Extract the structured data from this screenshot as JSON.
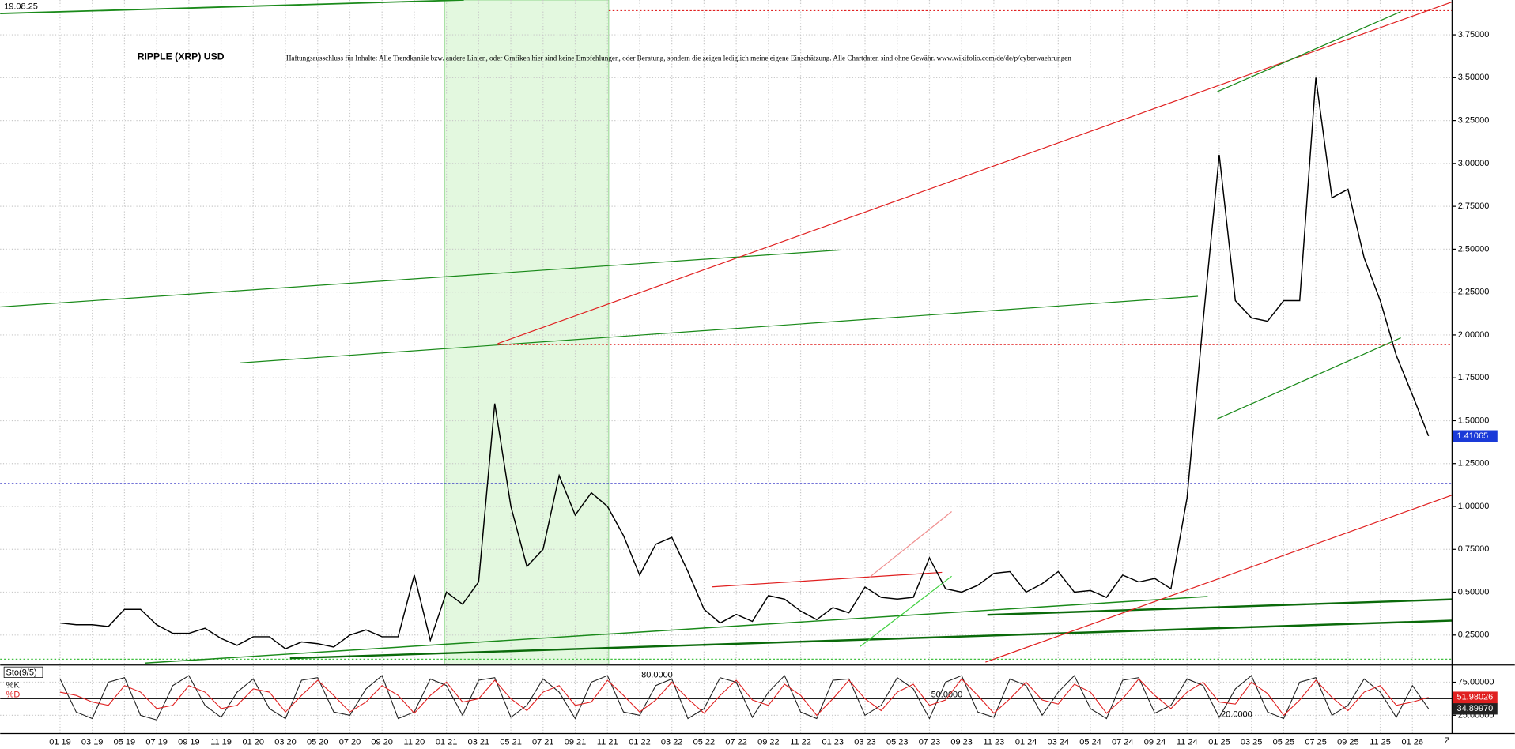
{
  "date_label": "19.08.25",
  "chart_data": [
    {
      "type": "line",
      "title": "RIPPLE (XRP) USD",
      "subtitle": "Haftungsausschluss für Inhalte: Alle Trendkanäle bzw. andere Linien, oder Grafiken hier sind keine Empfehlungen, oder Beratung, sondern die zeigen lediglich meine eigene Einschätzung. Alle Chartdaten sind ohne Gewähr.  www.wikifolio.com/de/de/p/cyberwaehrungen",
      "categories": [
        "01 19",
        null,
        "03 19",
        null,
        "05 19",
        null,
        "07 19",
        null,
        "09 19",
        null,
        "11 19",
        null,
        "01 20",
        null,
        "03 20",
        null,
        "05 20",
        null,
        "07 20",
        null,
        "09 20",
        null,
        "11 20",
        null,
        "01 21",
        null,
        "03 21",
        null,
        "05 21",
        null,
        "07 21",
        null,
        "09 21",
        null,
        "11 21",
        null,
        "01 22",
        null,
        "03 22",
        null,
        "05 22",
        null,
        "07 22",
        null,
        "09 22",
        null,
        "11 22",
        null,
        "01 23",
        null,
        "03 23",
        null,
        "05 23",
        null,
        "07 23",
        null,
        "09 23",
        null,
        "11 23",
        null,
        "01 24",
        null,
        "03 24",
        null,
        "05 24",
        null,
        "07 24",
        null,
        "09 24",
        null,
        "11 24",
        null,
        "01 25",
        null,
        "03 25",
        null,
        "05 25",
        null,
        "07 25",
        null,
        "09 25",
        null,
        "11 25",
        null,
        "01 26",
        null
      ],
      "x_end_label": "Z",
      "series": [
        {
          "name": "XRP",
          "color": "#000000",
          "values": [
            0.32,
            0.31,
            0.31,
            0.3,
            0.4,
            0.4,
            0.31,
            0.26,
            0.26,
            0.29,
            0.23,
            0.19,
            0.24,
            0.24,
            0.17,
            0.21,
            0.2,
            0.18,
            0.25,
            0.28,
            0.24,
            0.24,
            0.6,
            0.22,
            0.5,
            0.43,
            0.56,
            1.6,
            1.0,
            0.65,
            0.75,
            1.18,
            0.95,
            1.08,
            1.0,
            0.83,
            0.6,
            0.78,
            0.82,
            0.62,
            0.4,
            0.32,
            0.37,
            0.33,
            0.48,
            0.46,
            0.39,
            0.34,
            0.41,
            0.38,
            0.53,
            0.47,
            0.46,
            0.47,
            0.7,
            0.52,
            0.5,
            0.54,
            0.61,
            0.62,
            0.5,
            0.55,
            0.62,
            0.5,
            0.51,
            0.47,
            0.6,
            0.56,
            0.58,
            0.52,
            1.05,
            2.08,
            3.05,
            2.2,
            2.1,
            2.08,
            2.2,
            2.2,
            3.5,
            2.8,
            2.85,
            2.45,
            2.2,
            1.88,
            1.65,
            1.41065
          ]
        }
      ],
      "ylim": [
        0.081,
        3.953
      ],
      "yticks": [
        {
          "value": 0.25,
          "label": "0.25000"
        },
        {
          "value": 0.5,
          "label": "0.50000"
        },
        {
          "value": 0.75,
          "label": "0.75000"
        },
        {
          "value": 1,
          "label": "1.00000"
        },
        {
          "value": 1.25,
          "label": "1.25000"
        },
        {
          "value": 1.5,
          "label": "1.50000"
        },
        {
          "value": 1.75,
          "label": "1.75000"
        },
        {
          "value": 2,
          "label": "2.00000"
        },
        {
          "value": 2.25,
          "label": "2.25000"
        },
        {
          "value": 2.5,
          "label": "2.50000"
        },
        {
          "value": 2.75,
          "label": "2.75000"
        },
        {
          "value": 3,
          "label": "3.00000"
        },
        {
          "value": 3.25,
          "label": "3.25000"
        },
        {
          "value": 3.5,
          "label": "3.50000"
        },
        {
          "value": 3.75,
          "label": "3.75000"
        }
      ],
      "grid": true
    },
    {
      "type": "line",
      "title": "Sto(9/5)",
      "series": [
        {
          "name": "%K",
          "color": "#222222",
          "last_label": "34.89970",
          "values": [
            80,
            30,
            20,
            75,
            82,
            25,
            18,
            70,
            85,
            40,
            22,
            60,
            80,
            35,
            20,
            78,
            82,
            30,
            25,
            65,
            85,
            20,
            30,
            80,
            70,
            25,
            78,
            82,
            22,
            40,
            80,
            60,
            20,
            75,
            85,
            30,
            25,
            70,
            80,
            20,
            35,
            82,
            75,
            22,
            60,
            85,
            30,
            20,
            78,
            80,
            25,
            40,
            82,
            65,
            20,
            75,
            85,
            30,
            22,
            80,
            70,
            25,
            60,
            85,
            35,
            20,
            78,
            82,
            28,
            40,
            80,
            70,
            22,
            65,
            85,
            30,
            20,
            75,
            82,
            25,
            40,
            80,
            60,
            22,
            70,
            34.8997
          ]
        },
        {
          "name": "%D",
          "color": "#e02020",
          "values": [
            60,
            55,
            45,
            40,
            70,
            60,
            35,
            40,
            70,
            60,
            35,
            40,
            65,
            60,
            30,
            55,
            78,
            55,
            30,
            45,
            70,
            55,
            28,
            55,
            75,
            45,
            50,
            78,
            50,
            32,
            60,
            70,
            40,
            45,
            78,
            55,
            30,
            48,
            75,
            50,
            28,
            55,
            78,
            48,
            40,
            72,
            55,
            25,
            50,
            78,
            50,
            32,
            60,
            72,
            40,
            48,
            80,
            55,
            28,
            50,
            75,
            48,
            42,
            72,
            60,
            28,
            50,
            80,
            55,
            35,
            60,
            75,
            45,
            42,
            75,
            58,
            25,
            48,
            78,
            52,
            32,
            60,
            70,
            40,
            45,
            51.98026
          ]
        }
      ],
      "ylim": [
        12,
        85
      ],
      "yticks": [
        {
          "value": 25,
          "label": "25.00000"
        },
        {
          "value": 75,
          "label": "75.00000"
        }
      ],
      "levels": [
        {
          "value": 80,
          "label": "80.0000"
        },
        {
          "value": 50,
          "label": "50.0000"
        },
        {
          "value": 20,
          "label": "20.0000"
        }
      ],
      "grid": true
    }
  ]
}
